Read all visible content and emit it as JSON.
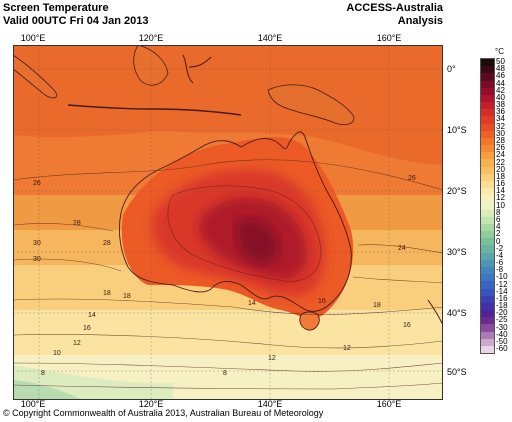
{
  "header": {
    "title": "Screen Temperature",
    "valid": "Valid 00UTC Fri 04 Jan 2013",
    "model": "ACCESS-Australia",
    "kind": "Analysis"
  },
  "footer": "© Copyright Commonwealth of Australia 2013, Australian Bureau of Meteorology",
  "axes": {
    "lon_labels": [
      "100°E",
      "120°E",
      "140°E",
      "160°E"
    ],
    "lat_labels": [
      "0°",
      "10°S",
      "20°S",
      "30°S",
      "40°S",
      "50°S"
    ]
  },
  "contour_labels": [
    "26",
    "30",
    "28",
    "26",
    "24",
    "30",
    "28",
    "18",
    "18",
    "14",
    "16",
    "12",
    "10",
    "8",
    "16",
    "14",
    "16",
    "12",
    "18",
    "12",
    "8"
  ],
  "colorbar": {
    "unit": "°C",
    "levels": [
      "50",
      "48",
      "46",
      "44",
      "42",
      "40",
      "38",
      "36",
      "34",
      "32",
      "30",
      "28",
      "26",
      "24",
      "22",
      "20",
      "18",
      "16",
      "14",
      "12",
      "10",
      "8",
      "6",
      "4",
      "2",
      "0",
      "-2",
      "-4",
      "-6",
      "-8",
      "-10",
      "-12",
      "-14",
      "-16",
      "-18",
      "-20",
      "-25",
      "-30",
      "-40",
      "-50",
      "-60"
    ],
    "colors": [
      "#1a0a0a",
      "#3a0a14",
      "#5a0a1e",
      "#7a0a28",
      "#960c2c",
      "#b0142c",
      "#c41e2a",
      "#d42e28",
      "#e03c26",
      "#e84e26",
      "#ee6228",
      "#f2762c",
      "#f48a34",
      "#f69e40",
      "#f8b050",
      "#f9c062",
      "#fad078",
      "#fbde90",
      "#fbeaa8",
      "#f8f2c0",
      "#eef2c4",
      "#d8ecbc",
      "#c2e4b0",
      "#a8d8a4",
      "#90cc9c",
      "#7cc09a",
      "#6ab4a0",
      "#5aa6aa",
      "#4c96b4",
      "#4486bc",
      "#3e76c0",
      "#3a64c2",
      "#3a52be",
      "#3c40b4",
      "#4430a6",
      "#502494",
      "#6a2a8e",
      "#8a4a9e",
      "#aa7ab4",
      "#cca8cc",
      "#e8d6e6"
    ]
  }
}
